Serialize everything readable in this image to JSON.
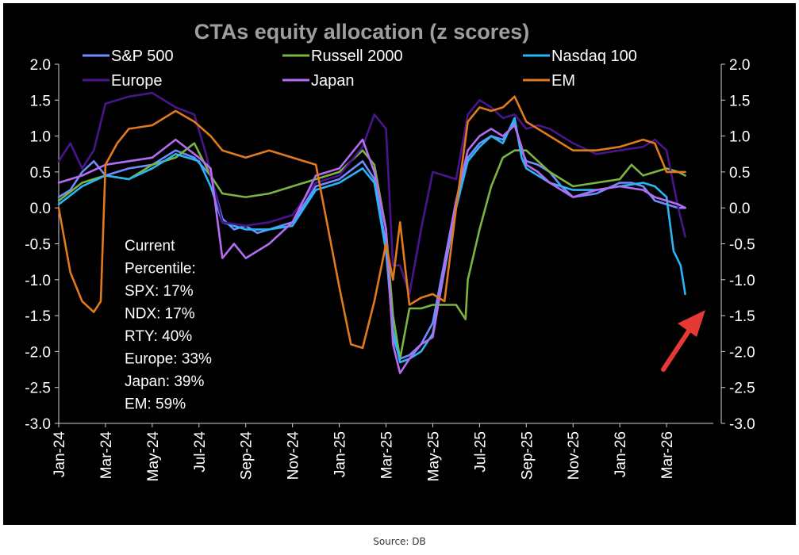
{
  "source": "Source: DB",
  "chart_data": {
    "type": "line",
    "title": "CTAs equity allocation (z scores)",
    "xlabel": "",
    "ylabel": "",
    "ylim": [
      -3.0,
      2.0
    ],
    "yticks": [
      2.0,
      1.5,
      1.0,
      0.5,
      0.0,
      -0.5,
      -1.0,
      -1.5,
      -2.0,
      -2.5,
      -3.0
    ],
    "ytick_labels": [
      "2.0",
      "1.5",
      "1.0",
      "0.5",
      "0.0",
      "-0.5",
      "-1.0",
      "-1.5",
      "-2.0",
      "-2.5",
      "-3.0"
    ],
    "xlim": [
      0,
      28
    ],
    "x_ticks": [
      0,
      2,
      4,
      6,
      8,
      10,
      12,
      14,
      16,
      18,
      20,
      22,
      24,
      26
    ],
    "x_tick_labels": [
      "Jan-24",
      "Mar-24",
      "May-24",
      "Jul-24",
      "Sep-24",
      "Nov-24",
      "Jan-25",
      "Mar-25",
      "May-25",
      "Jul-25",
      "Sep-25",
      "Nov-25",
      "Jan-26",
      "Mar-26"
    ],
    "x_units": "months since Jan-24",
    "legend_position": "top, three columns",
    "background": "#000000",
    "text_color": "#ffffff",
    "series": [
      {
        "name": "S&P 500",
        "color": "#6f8cff",
        "x": [
          0,
          0.5,
          1,
          1.5,
          2,
          3,
          4,
          5,
          5.8,
          6.5,
          7,
          7.5,
          8,
          8.5,
          9,
          10,
          11,
          12,
          13,
          13.5,
          14,
          14.3,
          14.6,
          15,
          15.5,
          16,
          17,
          17.5,
          18,
          18.5,
          19,
          19.5,
          19.8,
          20,
          20.5,
          21,
          21.5,
          22,
          23,
          24,
          24.5,
          25,
          25.5,
          26,
          26.5,
          26.8
        ],
        "y": [
          0.15,
          0.25,
          0.5,
          0.65,
          0.45,
          0.55,
          0.6,
          0.8,
          0.7,
          0.45,
          -0.15,
          -0.3,
          -0.25,
          -0.35,
          -0.3,
          -0.2,
          0.3,
          0.4,
          0.65,
          0.4,
          -0.5,
          -1.8,
          -2.1,
          -2.05,
          -1.9,
          -1.6,
          0.1,
          0.7,
          0.9,
          1.0,
          0.95,
          1.2,
          0.8,
          0.65,
          0.6,
          0.5,
          0.3,
          0.15,
          0.2,
          0.35,
          0.35,
          0.3,
          0.1,
          0.05,
          0.0,
          0.0
        ]
      },
      {
        "name": "Russell 2000",
        "color": "#7cb342",
        "x": [
          0,
          1,
          2,
          3,
          4,
          5,
          5.8,
          6.5,
          7,
          8,
          9,
          10,
          11,
          12,
          13,
          13.5,
          14,
          14.3,
          14.6,
          15,
          15.5,
          16,
          17,
          17.4,
          17.5,
          18,
          18.5,
          19,
          19.5,
          20,
          21,
          22,
          23,
          24,
          24.5,
          25,
          25.5,
          26,
          26.5,
          26.8
        ],
        "y": [
          0.1,
          0.35,
          0.45,
          0.4,
          0.6,
          0.7,
          0.9,
          0.45,
          0.2,
          0.15,
          0.2,
          0.3,
          0.4,
          0.5,
          0.8,
          0.6,
          -0.3,
          -1.5,
          -2.1,
          -1.4,
          -1.4,
          -1.35,
          -1.35,
          -1.55,
          -1.0,
          -0.3,
          0.3,
          0.7,
          0.8,
          0.8,
          0.5,
          0.3,
          0.35,
          0.4,
          0.6,
          0.45,
          0.5,
          0.55,
          0.5,
          0.45
        ]
      },
      {
        "name": "Nasdaq 100",
        "color": "#29b6f6",
        "x": [
          0,
          1,
          2,
          3,
          4,
          5,
          6,
          6.5,
          7,
          8,
          9,
          10,
          11,
          12,
          13,
          13.5,
          14,
          14.3,
          14.6,
          15,
          15.5,
          16,
          17,
          17.5,
          18,
          18.5,
          19,
          19.5,
          19.8,
          20,
          20.5,
          21,
          22,
          23,
          24,
          25,
          25.5,
          26,
          26.3,
          26.6,
          26.8
        ],
        "y": [
          0.05,
          0.3,
          0.45,
          0.4,
          0.55,
          0.75,
          0.65,
          0.3,
          -0.2,
          -0.3,
          -0.3,
          -0.25,
          0.25,
          0.35,
          0.55,
          0.35,
          -0.6,
          -1.7,
          -2.15,
          -2.1,
          -2.0,
          -1.75,
          0.0,
          0.65,
          0.85,
          1.0,
          0.9,
          1.25,
          0.7,
          0.55,
          0.45,
          0.35,
          0.25,
          0.25,
          0.3,
          0.35,
          0.3,
          0.15,
          -0.6,
          -0.8,
          -1.2
        ]
      },
      {
        "name": "Europe",
        "color": "#4a148c",
        "x": [
          0,
          0.5,
          1,
          1.5,
          2,
          3,
          4,
          5,
          5.8,
          6.3,
          7,
          8,
          9,
          10,
          11,
          12,
          13,
          13.5,
          14,
          14.3,
          14.6,
          15,
          15.5,
          16,
          17,
          17.5,
          18,
          18.5,
          19,
          19.5,
          20,
          20.5,
          21,
          22,
          23,
          24,
          25,
          25.5,
          26,
          26.5,
          26.8
        ],
        "y": [
          0.65,
          0.9,
          0.55,
          0.8,
          1.45,
          1.55,
          1.6,
          1.4,
          1.3,
          0.75,
          -0.2,
          -0.25,
          -0.2,
          -0.1,
          0.35,
          0.45,
          0.85,
          1.3,
          1.1,
          -0.8,
          -0.8,
          -1.2,
          -0.3,
          0.5,
          0.4,
          1.3,
          1.5,
          1.4,
          1.25,
          1.3,
          1.1,
          1.15,
          1.1,
          0.9,
          0.75,
          0.8,
          0.85,
          0.95,
          0.8,
          0.0,
          -0.4
        ]
      },
      {
        "name": "Japan",
        "color": "#b46cf0",
        "x": [
          0,
          1,
          2,
          3,
          4,
          5,
          6,
          6.5,
          7,
          7.5,
          8,
          9,
          10,
          11,
          12,
          13,
          13.5,
          14,
          14.3,
          14.6,
          15,
          15.5,
          16,
          17,
          17.5,
          18,
          18.5,
          19,
          19.5,
          19.8,
          20,
          20.5,
          21,
          22,
          23,
          24,
          25,
          25.5,
          26,
          26.5,
          26.8
        ],
        "y": [
          0.35,
          0.45,
          0.6,
          0.65,
          0.7,
          0.95,
          0.7,
          0.55,
          -0.7,
          -0.5,
          -0.7,
          -0.5,
          -0.2,
          0.45,
          0.55,
          0.95,
          0.5,
          -0.3,
          -1.9,
          -2.3,
          -2.1,
          -1.9,
          -1.8,
          0.1,
          0.8,
          1.0,
          1.1,
          1.0,
          1.15,
          0.85,
          0.6,
          0.5,
          0.35,
          0.15,
          0.25,
          0.3,
          0.25,
          0.15,
          0.1,
          0.05,
          0.0
        ]
      },
      {
        "name": "EM",
        "color": "#e07a1e",
        "x": [
          0,
          0.5,
          1,
          1.5,
          1.8,
          2,
          2.5,
          3,
          4,
          5,
          5.8,
          6.5,
          7,
          8,
          9,
          10,
          11,
          12,
          12.5,
          13,
          13.5,
          14,
          14.3,
          14.6,
          15,
          15.5,
          16,
          16.5,
          17,
          17.5,
          18,
          18.5,
          19,
          19.5,
          20,
          21,
          22,
          23,
          24,
          25,
          25.5,
          26,
          26.5,
          26.8
        ],
        "y": [
          0.0,
          -0.9,
          -1.3,
          -1.45,
          -1.3,
          0.6,
          0.9,
          1.1,
          1.15,
          1.35,
          1.2,
          1.0,
          0.8,
          0.7,
          0.8,
          0.7,
          0.6,
          -1.1,
          -1.9,
          -1.95,
          -1.3,
          -0.5,
          -1.0,
          -0.2,
          -1.35,
          -1.25,
          -1.2,
          -1.3,
          0.0,
          1.2,
          1.4,
          1.35,
          1.4,
          1.55,
          1.2,
          1.0,
          0.8,
          0.8,
          0.85,
          0.95,
          0.9,
          0.5,
          0.5,
          0.5
        ]
      }
    ],
    "annotation": {
      "lines": [
        "Current",
        "Percentile:",
        "SPX: 17%",
        "NDX: 17%",
        "RTY: 40%",
        "Europe: 33%",
        "Japan: 39%",
        "EM: 59%"
      ]
    },
    "arrow": {
      "color": "#e53935",
      "points_to": "Nasdaq 100 last value"
    }
  }
}
